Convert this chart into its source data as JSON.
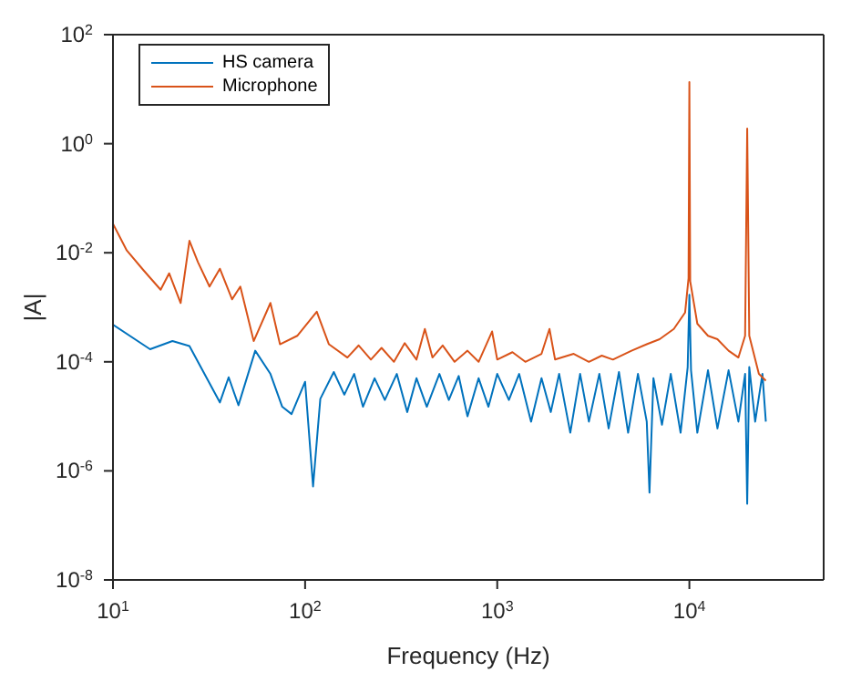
{
  "chart_data": {
    "type": "line",
    "xlabel": "Frequency (Hz)",
    "ylabel": "|A|",
    "log": "xy",
    "legend": "top left",
    "marker": "none",
    "line_style": "solid",
    "xlim": [
      10,
      50000
    ],
    "xticks": [
      {
        "value": 10,
        "label": "10$^{1}$"
      },
      {
        "value": 100,
        "label": "10$^{2}$"
      },
      {
        "value": 1000,
        "label": "10$^{3}$"
      },
      {
        "value": 10000,
        "label": "10$^{4}$"
      }
    ],
    "ylim": [
      1e-08,
      100
    ],
    "yticks": [
      {
        "value": 1e-08,
        "label": "10$^{-8}$"
      },
      {
        "value": 1e-06,
        "label": "10$^{-6}$"
      },
      {
        "value": 0.0001,
        "label": "10$^{-4}$"
      },
      {
        "value": 0.01,
        "label": "10$^{-2}$"
      },
      {
        "value": 1,
        "label": "10$^{0}$"
      },
      {
        "value": 100,
        "label": "10$^{2}$"
      }
    ],
    "series": [
      {
        "name": "HS camera",
        "color": "#0072bd",
        "x": [
          10,
          15.6,
          20.4,
          25,
          36,
          40,
          45,
          55,
          66,
          76,
          85,
          100,
          110,
          120,
          141,
          160,
          180,
          200,
          230,
          260,
          300,
          340,
          380,
          430,
          500,
          560,
          630,
          700,
          800,
          900,
          1000,
          1150,
          1300,
          1500,
          1700,
          1900,
          2100,
          2400,
          2700,
          3000,
          3400,
          3800,
          4300,
          4800,
          5400,
          6000,
          6200,
          6500,
          7200,
          8000,
          9000,
          9800,
          10000,
          10200,
          11000,
          12500,
          14000,
          16000,
          18000,
          19500,
          20000,
          20500,
          22000,
          24000,
          25000
        ],
        "values": [
          0.00048,
          0.00017,
          0.00024,
          0.000195,
          1.8e-05,
          5.2e-05,
          1.6e-05,
          0.00016,
          6e-05,
          1.5e-05,
          1.1e-05,
          4.3e-05,
          5.2e-07,
          2.1e-05,
          6.5e-05,
          2.5e-05,
          6e-05,
          1.5e-05,
          5e-05,
          2e-05,
          6e-05,
          1.2e-05,
          5e-05,
          1.5e-05,
          6e-05,
          2e-05,
          5.5e-05,
          1e-05,
          5e-05,
          1.5e-05,
          6e-05,
          2e-05,
          6e-05,
          8e-06,
          5e-05,
          1.2e-05,
          6e-05,
          5e-06,
          6e-05,
          8e-06,
          6e-05,
          6e-06,
          6.5e-05,
          5e-06,
          6e-05,
          8e-06,
          4e-07,
          5e-05,
          7e-06,
          6e-05,
          5e-06,
          8e-05,
          0.0017,
          7e-05,
          5e-06,
          7e-05,
          6e-06,
          7e-05,
          8e-06,
          6e-05,
          2.5e-07,
          8e-05,
          8e-06,
          6e-05,
          8e-06
        ]
      },
      {
        "name": "Microphone",
        "color": "#d95319",
        "x": [
          10,
          11.8,
          14.4,
          17.7,
          19.6,
          22.5,
          25,
          27.7,
          31.8,
          36,
          41.7,
          46,
          54,
          66,
          74,
          91,
          115,
          133,
          166,
          190,
          220,
          250,
          290,
          330,
          380,
          420,
          460,
          520,
          600,
          700,
          800,
          940,
          1000,
          1200,
          1400,
          1700,
          1870,
          2000,
          2500,
          3000,
          3500,
          4000,
          5000,
          6000,
          7000,
          8300,
          9500,
          9900,
          10000,
          10100,
          11000,
          12500,
          14000,
          16000,
          18000,
          19500,
          20000,
          20500,
          23000,
          25000
        ],
        "values": [
          0.034,
          0.011,
          0.0048,
          0.0021,
          0.0042,
          0.0012,
          0.0166,
          0.0067,
          0.0024,
          0.0051,
          0.0014,
          0.0024,
          0.00024,
          0.0012,
          0.00021,
          0.0003,
          0.00083,
          0.00021,
          0.00012,
          0.0002,
          0.00011,
          0.00018,
          0.0001,
          0.00022,
          0.00011,
          0.0004,
          0.00012,
          0.0002,
          0.0001,
          0.00016,
          0.0001,
          0.00036,
          0.00011,
          0.00015,
          0.0001,
          0.00014,
          0.0004,
          0.00011,
          0.00014,
          0.0001,
          0.00013,
          0.00011,
          0.00016,
          0.00021,
          0.00026,
          0.0004,
          0.0008,
          0.0034,
          13.5,
          0.003,
          0.0005,
          0.0003,
          0.00026,
          0.00016,
          0.00012,
          0.0003,
          1.9,
          0.0003,
          6e-05,
          4.5e-05
        ]
      }
    ]
  }
}
